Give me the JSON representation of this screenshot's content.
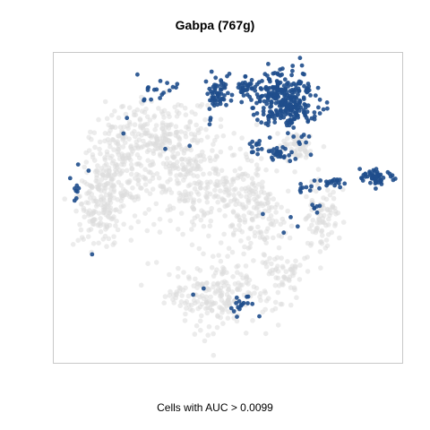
{
  "chart_data": {
    "type": "scatter",
    "title": "Gabpa (767g)",
    "xlabel": "Cells with AUC > 0.0099",
    "ylabel": "",
    "xlim": [
      0,
      100
    ],
    "ylim": [
      0,
      100
    ],
    "grid": false,
    "legend": "none",
    "colors": {
      "background_cells": "#dcdcdc",
      "selected_cells": "#1f4e8c",
      "frame": "#c8c8c8"
    },
    "series": [
      {
        "role": "background",
        "clusters": [
          {
            "cx": 28,
            "cy": 72,
            "rx": 14,
            "ry": 12,
            "n": 260
          },
          {
            "cx": 18,
            "cy": 58,
            "rx": 9,
            "ry": 16,
            "n": 200
          },
          {
            "cx": 40,
            "cy": 58,
            "rx": 12,
            "ry": 14,
            "n": 220
          },
          {
            "cx": 58,
            "cy": 50,
            "rx": 10,
            "ry": 16,
            "n": 190
          },
          {
            "cx": 47,
            "cy": 22,
            "rx": 14,
            "ry": 11,
            "n": 220
          },
          {
            "cx": 77,
            "cy": 46,
            "rx": 5,
            "ry": 11,
            "n": 90
          },
          {
            "cx": 70,
            "cy": 70,
            "rx": 6,
            "ry": 5,
            "n": 60
          },
          {
            "cx": 12,
            "cy": 50,
            "rx": 5,
            "ry": 10,
            "n": 80
          },
          {
            "cx": 66,
            "cy": 28,
            "rx": 5,
            "ry": 6,
            "n": 50
          }
        ]
      },
      {
        "role": "selected",
        "clusters": [
          {
            "cx": 66,
            "cy": 85,
            "rx": 9,
            "ry": 8,
            "n": 320
          },
          {
            "cx": 47,
            "cy": 87,
            "rx": 3.5,
            "ry": 6,
            "n": 60
          },
          {
            "cx": 55,
            "cy": 89,
            "rx": 2.5,
            "ry": 4,
            "n": 25
          },
          {
            "cx": 31,
            "cy": 88,
            "rx": 4,
            "ry": 2.5,
            "n": 15
          },
          {
            "cx": 92,
            "cy": 60,
            "rx": 4,
            "ry": 2.5,
            "n": 55
          },
          {
            "cx": 66,
            "cy": 68,
            "rx": 6,
            "ry": 2,
            "n": 30
          },
          {
            "cx": 58,
            "cy": 70,
            "rx": 2,
            "ry": 2,
            "n": 10
          },
          {
            "cx": 80,
            "cy": 58,
            "rx": 4,
            "ry": 2,
            "n": 20
          },
          {
            "cx": 72,
            "cy": 56,
            "rx": 2,
            "ry": 2,
            "n": 8
          },
          {
            "cx": 76,
            "cy": 50,
            "rx": 2,
            "ry": 2,
            "n": 6
          },
          {
            "cx": 6,
            "cy": 55,
            "rx": 1.5,
            "ry": 3,
            "n": 8
          },
          {
            "cx": 54,
            "cy": 19,
            "rx": 2,
            "ry": 3,
            "n": 15
          }
        ],
        "points": [
          [
            20,
            74
          ],
          [
            21,
            79
          ],
          [
            24,
            93
          ],
          [
            27,
            88
          ],
          [
            26,
            85
          ],
          [
            10,
            62
          ],
          [
            7,
            64
          ],
          [
            11,
            35
          ],
          [
            39,
            70
          ],
          [
            68,
            47
          ],
          [
            70,
            44
          ],
          [
            66,
            42
          ],
          [
            60,
            48
          ],
          [
            40,
            22
          ],
          [
            43,
            24
          ],
          [
            59,
            15
          ],
          [
            57,
            19
          ],
          [
            32,
            69
          ],
          [
            45,
            79
          ],
          [
            64,
            81
          ]
        ]
      }
    ]
  }
}
